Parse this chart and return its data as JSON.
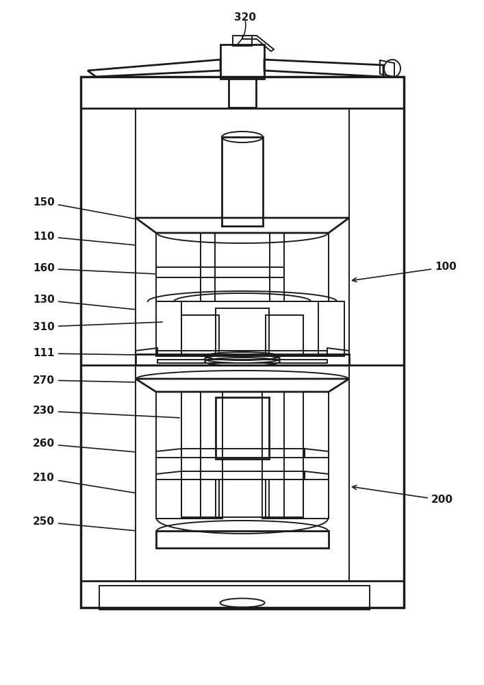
{
  "bg_color": "#ffffff",
  "lc": "#1a1a1a",
  "lw": 1.4,
  "lw2": 2.0,
  "lw3": 2.5
}
